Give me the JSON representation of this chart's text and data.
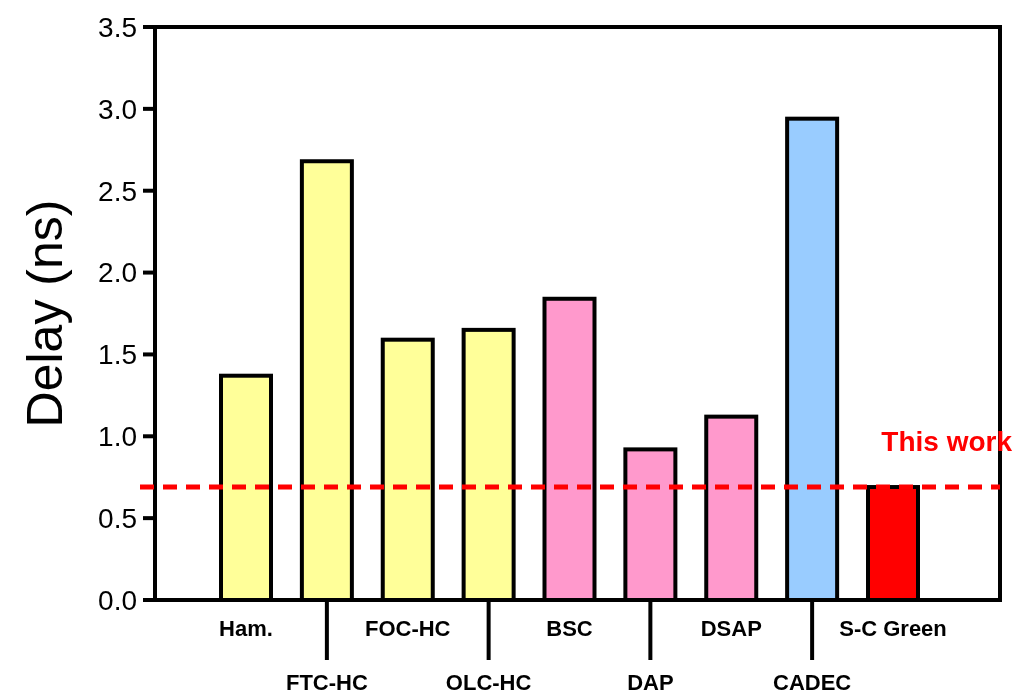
{
  "chart_data": {
    "type": "bar",
    "ylabel": "Delay (ns)",
    "categories": [
      "Ham.",
      "FTC-HC",
      "FOC-HC",
      "OLC-HC",
      "BSC",
      "DAP",
      "DSAP",
      "CADEC",
      "S-C Green"
    ],
    "values": [
      1.37,
      2.68,
      1.59,
      1.65,
      1.84,
      0.92,
      1.12,
      2.94,
      0.69
    ],
    "colors": [
      "#ffff99",
      "#ffff99",
      "#ffff99",
      "#ffff99",
      "#ff99cc",
      "#ff99cc",
      "#ff99cc",
      "#99ccff",
      "#ff0000"
    ],
    "ylim": [
      0,
      3.5
    ],
    "yticks": [
      {
        "value": 0,
        "label": "0.0"
      },
      {
        "value": 0.5,
        "label": "0.5"
      },
      {
        "value": 1,
        "label": "1.0"
      },
      {
        "value": 1.5,
        "label": "1.5"
      },
      {
        "value": 2,
        "label": "2.0"
      },
      {
        "value": 2.5,
        "label": "2.5"
      },
      {
        "value": 3,
        "label": "3.0"
      },
      {
        "value": 3.5,
        "label": "3.5"
      }
    ],
    "ref_lines": [
      {
        "axis": "y",
        "value": 0.69,
        "label": "This work",
        "color": "#ff0000",
        "line_style": "dashed"
      }
    ],
    "grid": false
  }
}
